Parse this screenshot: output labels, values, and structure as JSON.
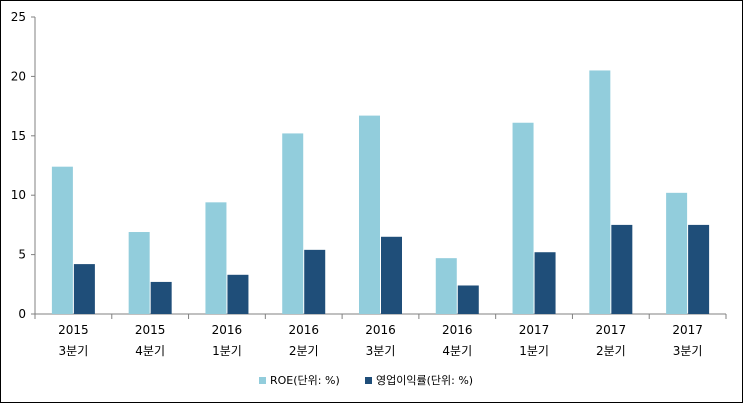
{
  "chart_data": {
    "type": "bar",
    "categories": [
      [
        "2015",
        "3분기"
      ],
      [
        "2015",
        "4분기"
      ],
      [
        "2016",
        "1분기"
      ],
      [
        "2016",
        "2분기"
      ],
      [
        "2016",
        "3분기"
      ],
      [
        "2016",
        "4분기"
      ],
      [
        "2017",
        "1분기"
      ],
      [
        "2017",
        "2분기"
      ],
      [
        "2017",
        "3분기"
      ]
    ],
    "series": [
      {
        "name": "ROE(단위: %)",
        "color": "#92CDDC",
        "values": [
          12.4,
          6.9,
          9.4,
          15.2,
          16.7,
          4.7,
          16.1,
          20.5,
          10.2
        ]
      },
      {
        "name": "영업이익률(단위: %)",
        "color": "#1F4E79",
        "values": [
          4.2,
          2.7,
          3.3,
          5.4,
          6.5,
          2.4,
          5.2,
          7.5,
          7.5
        ]
      }
    ],
    "ylim": [
      0,
      25
    ],
    "yticks": [
      0,
      5,
      10,
      15,
      20,
      25
    ],
    "grid": false,
    "legend_position": "bottom-center",
    "title": "",
    "xlabel": "",
    "ylabel": ""
  }
}
